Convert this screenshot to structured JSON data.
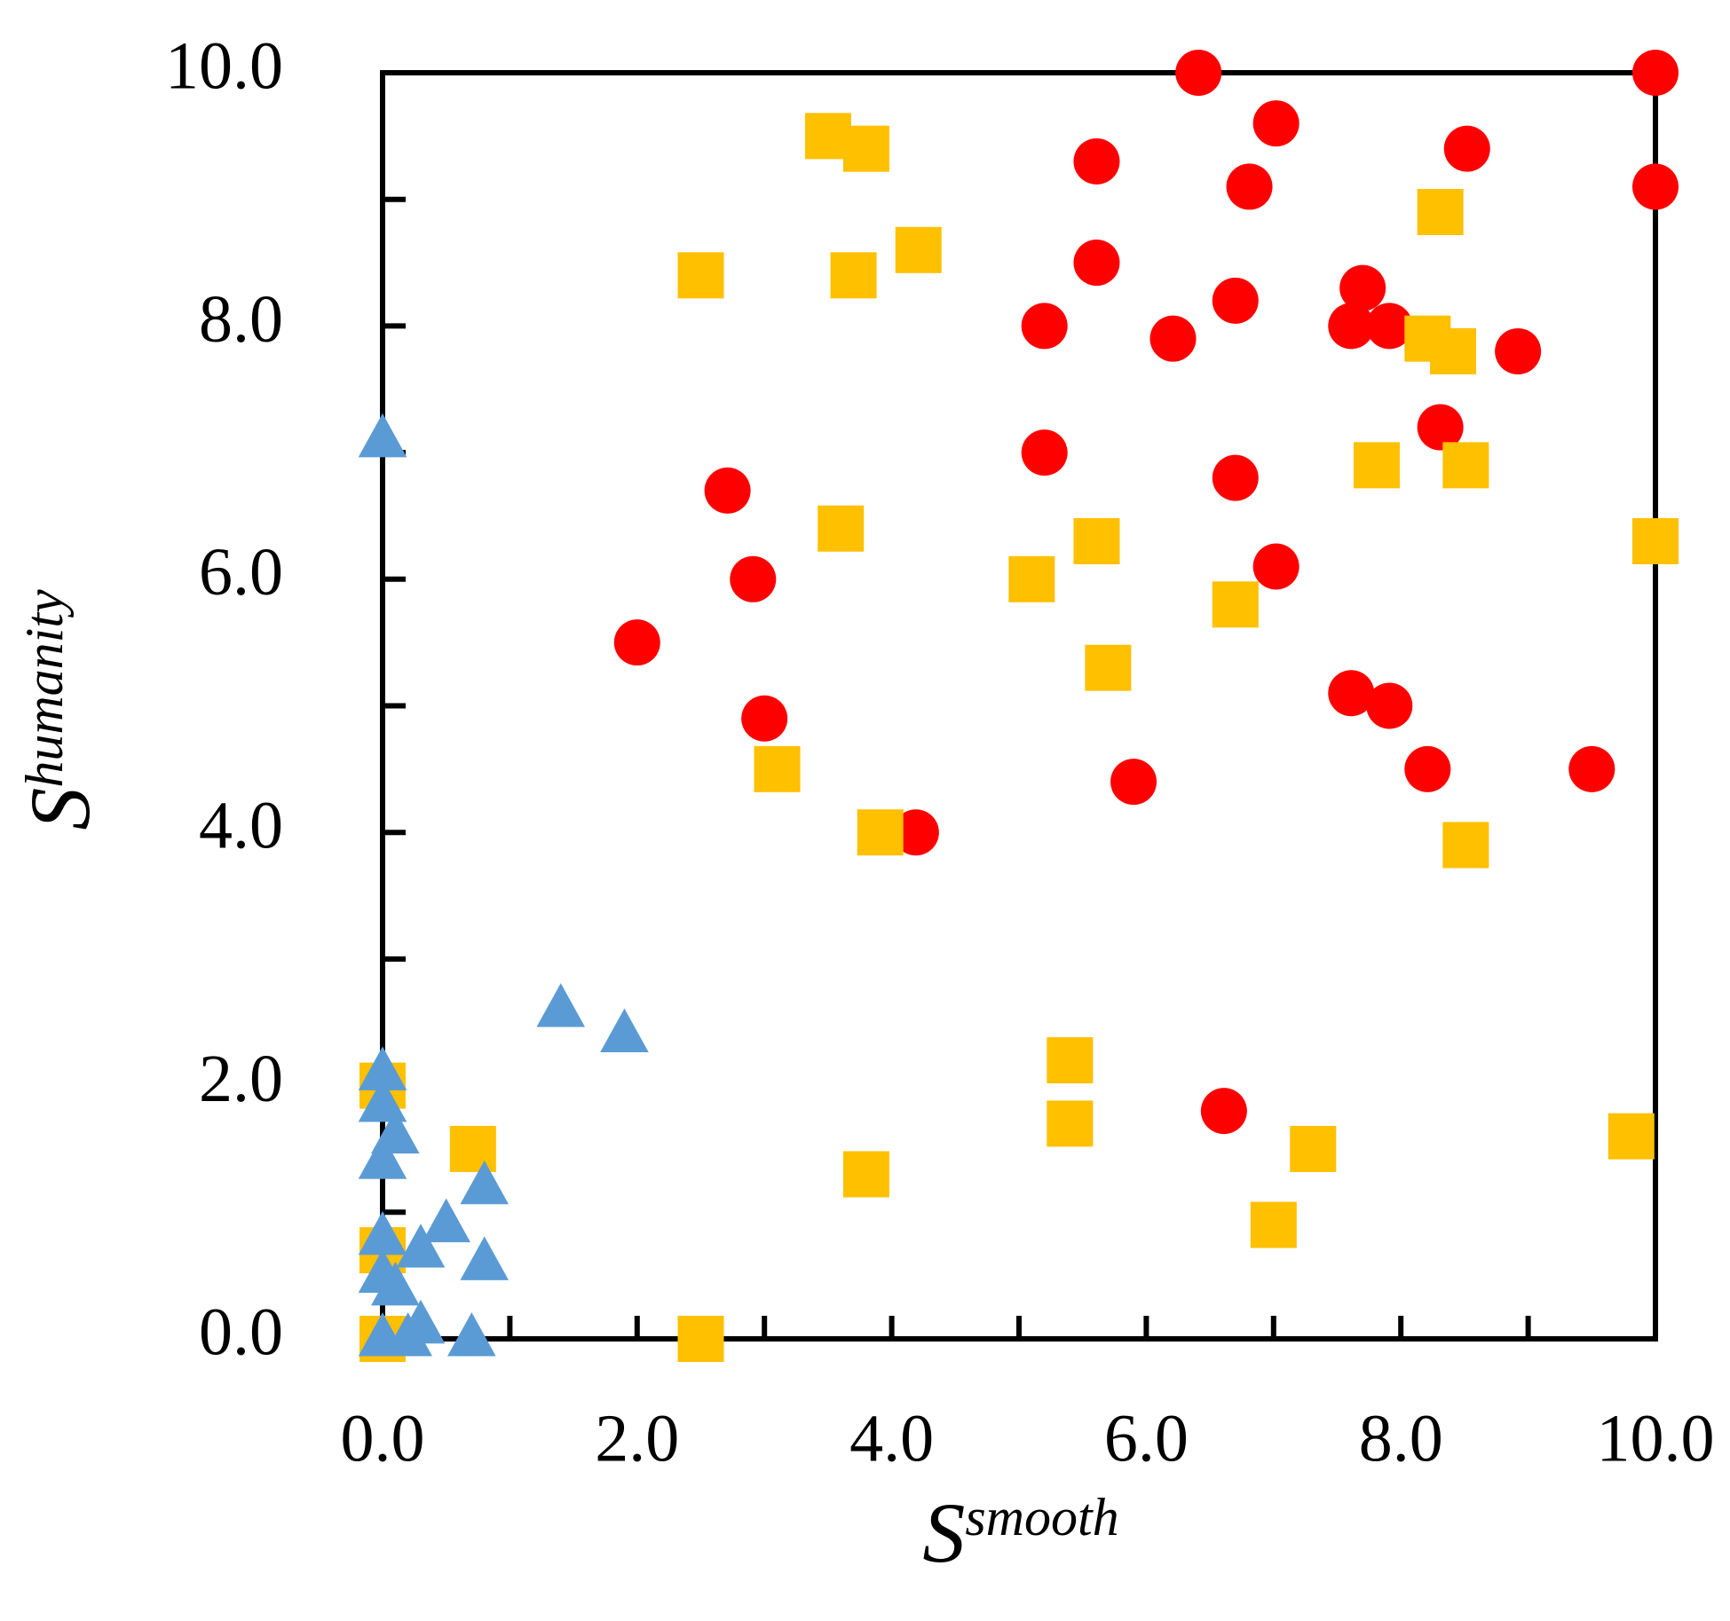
{
  "chart_data": {
    "type": "scatter",
    "xlabel": {
      "base": "S",
      "sup": "smooth"
    },
    "ylabel": {
      "base": "S",
      "sup": "humanity"
    },
    "xlim": [
      0,
      10
    ],
    "ylim": [
      0,
      10
    ],
    "xticks": [
      {
        "value": 0,
        "label": "0.0"
      },
      {
        "value": 2,
        "label": "2.0"
      },
      {
        "value": 4,
        "label": "4.0"
      },
      {
        "value": 6,
        "label": "6.0"
      },
      {
        "value": 8,
        "label": "8.0"
      },
      {
        "value": 10,
        "label": "10.0"
      }
    ],
    "yticks": [
      {
        "value": 0,
        "label": "0.0"
      },
      {
        "value": 2,
        "label": "2.0"
      },
      {
        "value": 4,
        "label": "4.0"
      },
      {
        "value": 6,
        "label": "6.0"
      },
      {
        "value": 8,
        "label": "8.0"
      },
      {
        "value": 10,
        "label": "10.0"
      }
    ],
    "xminorticks": [
      1,
      3,
      5,
      7,
      9
    ],
    "yminorticks": [
      1,
      3,
      5,
      7,
      9
    ],
    "grid": false,
    "series": [
      {
        "color": "#ff0000",
        "marker": "circle",
        "x": [
          6.41,
          10,
          7.02,
          5.61,
          6.81,
          8.52,
          10,
          5.61,
          6.7,
          7.7,
          7.61,
          7.91,
          5.2,
          6.21,
          8.92,
          8.31,
          5.2,
          6.7,
          2.71,
          2.91,
          7.02,
          2.0,
          3.0,
          7.61,
          7.91,
          5.9,
          8.21,
          9.5,
          4.19,
          6.61
        ],
        "values": [
          10.0,
          10.0,
          9.6,
          9.3,
          9.1,
          9.4,
          9.1,
          8.5,
          8.2,
          8.3,
          8.0,
          8.0,
          8.0,
          7.9,
          7.8,
          7.2,
          7.0,
          6.8,
          6.7,
          6.0,
          6.1,
          5.5,
          4.9,
          5.1,
          5.0,
          4.4,
          4.5,
          4.5,
          4.0,
          1.8
        ]
      },
      {
        "color": "#ffc000",
        "marker": "square",
        "x": [
          3.5,
          3.8,
          2.5,
          3.7,
          4.21,
          8.31,
          8.21,
          8.41,
          7.81,
          8.51,
          3.6,
          5.61,
          10,
          5.1,
          6.7,
          5.7,
          3.1,
          3.91,
          8.51,
          5.4,
          5.4,
          0,
          0.71,
          3.8,
          7.31,
          9.81,
          7.0,
          0,
          0,
          2.5
        ],
        "values": [
          9.5,
          9.4,
          8.4,
          8.4,
          8.6,
          8.9,
          7.9,
          7.8,
          6.9,
          6.9,
          6.4,
          6.3,
          6.3,
          6.0,
          5.8,
          5.3,
          4.5,
          4.0,
          3.9,
          2.2,
          1.7,
          2.0,
          1.5,
          1.3,
          1.5,
          1.6,
          0.9,
          0.7,
          0.0,
          0.0
        ]
      },
      {
        "color": "#5b9bd5",
        "marker": "triangle",
        "x": [
          0,
          1.4,
          1.9,
          0,
          0,
          0.1,
          0,
          0.8,
          0.5,
          0.3,
          0.8,
          0,
          0,
          0.1,
          0.3,
          0,
          0.2,
          0.7
        ],
        "values": [
          7.1,
          2.6,
          2.4,
          2.1,
          1.85,
          1.6,
          1.4,
          1.2,
          0.9,
          0.7,
          0.6,
          0.8,
          0.5,
          0.4,
          0.1,
          0,
          0,
          0
        ]
      }
    ]
  }
}
